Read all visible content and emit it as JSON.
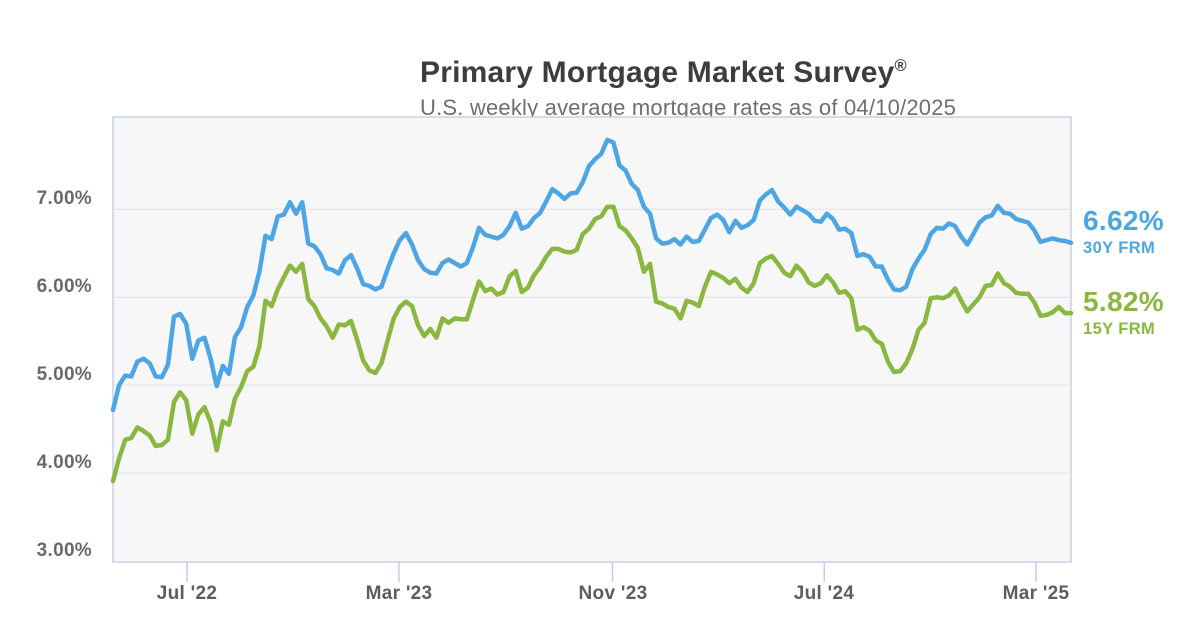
{
  "header": {
    "title_main": "Primary Mortgage Market Survey",
    "title_mark": "®",
    "subtitle": "U.S. weekly average mortgage rates as of 04/10/2025"
  },
  "chart_data": {
    "type": "line",
    "title": "Primary Mortgage Market Survey®",
    "subtitle": "U.S. weekly average mortgage rates as of 04/10/2025",
    "frequency": "weekly",
    "x_start": "2022-04-07",
    "x_end": "2025-04-10",
    "ylim": [
      2.99,
      8.05
    ],
    "grid": true,
    "grid_values": [
      4,
      5,
      6,
      7
    ],
    "legend_position": "right-outside",
    "y_ticks": [
      {
        "label": "7.00%",
        "value": 7
      },
      {
        "label": "6.00%",
        "value": 6
      },
      {
        "label": "5.00%",
        "value": 5
      },
      {
        "label": "4.00%",
        "value": 4
      },
      {
        "label": "3.00%",
        "value": 3
      }
    ],
    "x_ticks": [
      {
        "label": "Jul '22",
        "pos": 0.0773
      },
      {
        "label": "Mar '23",
        "pos": 0.2985
      },
      {
        "label": "Nov '23",
        "pos": 0.5214
      },
      {
        "label": "Jul '24",
        "pos": 0.7425
      },
      {
        "label": "Mar '25",
        "pos": 0.9636
      }
    ],
    "style": {
      "plot_bg": "#f7f7f8",
      "border": "#c7d1e7",
      "gridline": "#e5e5e7",
      "tick": "#c3cde6"
    },
    "series": [
      {
        "name": "30Y FRM",
        "current_label": "6.62%",
        "current_value": 6.62,
        "color": "#4da6e3",
        "values": [
          4.72,
          5.0,
          5.11,
          5.1,
          5.27,
          5.3,
          5.25,
          5.1,
          5.09,
          5.23,
          5.78,
          5.81,
          5.7,
          5.3,
          5.51,
          5.54,
          5.3,
          4.99,
          5.22,
          5.13,
          5.55,
          5.66,
          5.89,
          6.02,
          6.29,
          6.7,
          6.66,
          6.92,
          6.94,
          7.08,
          6.95,
          7.08,
          6.61,
          6.58,
          6.49,
          6.33,
          6.31,
          6.27,
          6.42,
          6.48,
          6.33,
          6.15,
          6.13,
          6.09,
          6.12,
          6.32,
          6.5,
          6.65,
          6.73,
          6.6,
          6.42,
          6.32,
          6.28,
          6.27,
          6.39,
          6.43,
          6.39,
          6.35,
          6.39,
          6.57,
          6.79,
          6.71,
          6.69,
          6.67,
          6.71,
          6.81,
          6.96,
          6.78,
          6.81,
          6.9,
          6.96,
          7.09,
          7.23,
          7.18,
          7.12,
          7.18,
          7.19,
          7.31,
          7.49,
          7.57,
          7.63,
          7.79,
          7.76,
          7.5,
          7.44,
          7.29,
          7.22,
          7.03,
          6.95,
          6.67,
          6.61,
          6.62,
          6.66,
          6.6,
          6.69,
          6.63,
          6.64,
          6.77,
          6.9,
          6.94,
          6.88,
          6.74,
          6.87,
          6.79,
          6.82,
          6.88,
          7.1,
          7.17,
          7.22,
          7.09,
          7.02,
          6.94,
          7.03,
          6.99,
          6.95,
          6.87,
          6.86,
          6.95,
          6.89,
          6.77,
          6.78,
          6.73,
          6.47,
          6.49,
          6.46,
          6.35,
          6.35,
          6.2,
          6.09,
          6.08,
          6.12,
          6.32,
          6.44,
          6.54,
          6.72,
          6.79,
          6.78,
          6.84,
          6.81,
          6.69,
          6.6,
          6.72,
          6.85,
          6.91,
          6.93,
          7.04,
          6.96,
          6.95,
          6.89,
          6.87,
          6.85,
          6.76,
          6.63,
          6.65,
          6.67,
          6.65,
          6.64,
          6.62
        ]
      },
      {
        "name": "15Y FRM",
        "current_label": "5.82%",
        "current_value": 5.82,
        "color": "#8ab73f",
        "values": [
          3.91,
          4.17,
          4.38,
          4.4,
          4.52,
          4.48,
          4.43,
          4.31,
          4.32,
          4.38,
          4.81,
          4.92,
          4.83,
          4.45,
          4.67,
          4.75,
          4.58,
          4.26,
          4.59,
          4.55,
          4.85,
          4.98,
          5.16,
          5.21,
          5.44,
          5.96,
          5.9,
          6.09,
          6.23,
          6.36,
          6.29,
          6.38,
          5.98,
          5.9,
          5.76,
          5.67,
          5.54,
          5.69,
          5.68,
          5.73,
          5.52,
          5.28,
          5.17,
          5.14,
          5.25,
          5.51,
          5.76,
          5.89,
          5.95,
          5.9,
          5.68,
          5.56,
          5.64,
          5.54,
          5.76,
          5.71,
          5.76,
          5.75,
          5.75,
          5.97,
          6.18,
          6.07,
          6.1,
          6.03,
          6.06,
          6.24,
          6.3,
          6.06,
          6.11,
          6.25,
          6.34,
          6.46,
          6.55,
          6.55,
          6.52,
          6.51,
          6.54,
          6.72,
          6.78,
          6.89,
          6.92,
          7.03,
          7.03,
          6.81,
          6.76,
          6.67,
          6.56,
          6.29,
          6.38,
          5.95,
          5.93,
          5.89,
          5.87,
          5.76,
          5.96,
          5.94,
          5.9,
          6.12,
          6.29,
          6.26,
          6.22,
          6.16,
          6.21,
          6.11,
          6.06,
          6.16,
          6.39,
          6.44,
          6.47,
          6.38,
          6.28,
          6.24,
          6.36,
          6.29,
          6.17,
          6.13,
          6.16,
          6.25,
          6.17,
          6.05,
          6.07,
          5.99,
          5.63,
          5.66,
          5.62,
          5.51,
          5.47,
          5.27,
          5.15,
          5.16,
          5.25,
          5.41,
          5.63,
          5.71,
          5.99,
          6.0,
          5.99,
          6.02,
          6.1,
          5.96,
          5.84,
          5.92,
          6.0,
          6.13,
          6.14,
          6.27,
          6.16,
          6.12,
          6.05,
          6.04,
          6.04,
          5.94,
          5.79,
          5.8,
          5.83,
          5.89,
          5.82,
          5.82
        ]
      }
    ]
  }
}
